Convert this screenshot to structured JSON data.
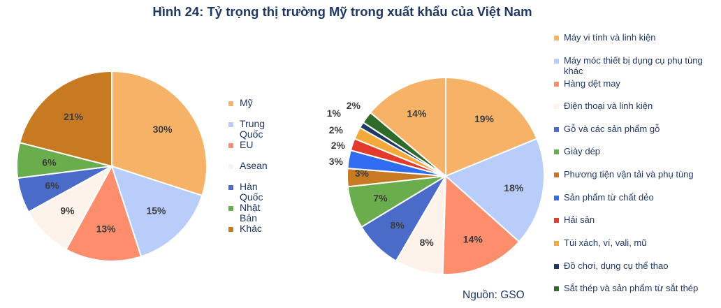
{
  "title": "Hình 24: Tỷ trọng thị trường Mỹ trong xuất khẩu của Việt Nam",
  "source": "Nguồn: GSO",
  "chart_data": [
    {
      "type": "pie",
      "slices": [
        {
          "name": "Mỹ",
          "value": 30,
          "label": "30%",
          "color": "#f6b266"
        },
        {
          "name": "Trung Quốc",
          "value": 15,
          "label": "15%",
          "color": "#b9cdfa"
        },
        {
          "name": "EU",
          "value": 13,
          "label": "13%",
          "color": "#fc8d6d"
        },
        {
          "name": "Asean",
          "value": 9,
          "label": "9%",
          "color": "#fdf3ea"
        },
        {
          "name": "Hàn Quốc",
          "value": 6,
          "label": "6%",
          "color": "#4a6cc8"
        },
        {
          "name": "Nhật Bản",
          "value": 6,
          "label": "6%",
          "color": "#6aad4c"
        },
        {
          "name": "Khác",
          "value": 21,
          "label": "21%",
          "color": "#c77a22"
        }
      ]
    },
    {
      "type": "pie",
      "slices": [
        {
          "name": "Máy vi tính và linh kiện",
          "value": 19,
          "label": "19%",
          "color": "#f6b266"
        },
        {
          "name": "Máy móc thiết bị dụng cụ phụ tùng khác",
          "value": 18,
          "label": "18%",
          "color": "#b9cdfa"
        },
        {
          "name": "Hàng dệt may",
          "value": 14,
          "label": "14%",
          "color": "#fc8d6d"
        },
        {
          "name": "Điện thoại và linh kiện",
          "value": 8,
          "label": "8%",
          "color": "#fdf3ea"
        },
        {
          "name": "Gỗ và các sản phẩm gỗ",
          "value": 8,
          "label": "8%",
          "color": "#4a6cc8"
        },
        {
          "name": "Giày dép",
          "value": 7,
          "label": "7%",
          "color": "#6aad4c"
        },
        {
          "name": "Phương tiện vận tải và phụ tùng",
          "value": 3,
          "label": "3%",
          "color": "#c77a22"
        },
        {
          "name": "Sản phẩm từ chất dẻo",
          "value": 3,
          "label": "3%",
          "color": "#2f6cf0"
        },
        {
          "name": "Hải sản",
          "value": 2,
          "label": "2%",
          "color": "#e23b2e"
        },
        {
          "name": "Túi xách, ví, vali, mũ",
          "value": 2,
          "label": "2%",
          "color": "#f5a93a"
        },
        {
          "name": "Đồ chơi, dụng cụ thể thao",
          "value": 1,
          "label": "1%",
          "color": "#1f3864"
        },
        {
          "name": "Sắt thép và sản phẩm từ sắt thép",
          "value": 2,
          "label": "2%",
          "color": "#2e6b2a"
        },
        {
          "name": "",
          "value": 14,
          "label": "14%",
          "color": "#f6b266"
        }
      ]
    }
  ]
}
